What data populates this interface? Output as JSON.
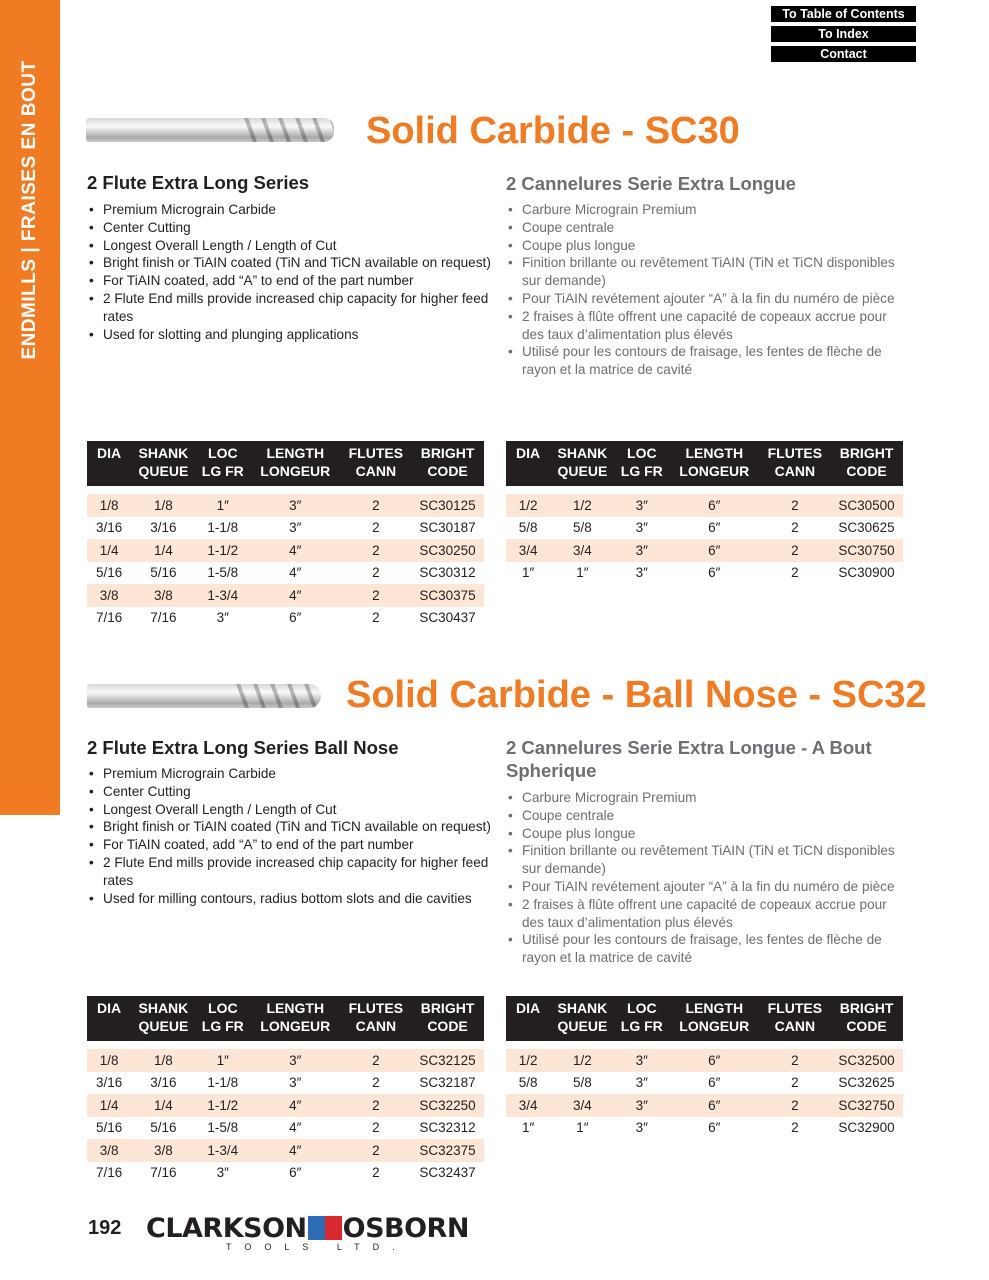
{
  "sidebar": {
    "label": "ENDMILLS | FRAISES EN BOUT",
    "color": "#f07b22"
  },
  "links": [
    "To Table of Contents",
    "To Index",
    "Contact"
  ],
  "sections": [
    {
      "title": "Solid Carbide - SC30",
      "en_heading": "2 Flute Extra Long Series",
      "en_bullets": [
        "Premium Micrograin Carbide",
        "Center Cutting",
        "Longest Overall Length / Length of Cut",
        "Bright finish or TiAIN coated (TiN and TiCN available on request)",
        "For TiAIN coated, add “A” to end of the part number",
        "2 Flute End mills provide increased chip capacity for higher feed rates",
        "Used for slotting and plunging applications"
      ],
      "fr_heading": "2 Cannelures Serie Extra Longue",
      "fr_bullets": [
        "Carbure Micrograin Premium",
        "Coupe centrale",
        "Coupe plus longue",
        "Finition brillante ou revêtement TiAIN (TiN et TiCN disponibles sur demande)",
        "Pour TiAIN revétement ajouter “A” à la fin du numéro de pièce",
        "2 fraises à flûte offrent une capacité de copeaux accrue pour des taux d’alimentation plus élevés",
        "Utilisé pour les contours de fraisage, les fentes de flèche de rayon et la matrice de cavité"
      ],
      "left_rows": [
        [
          "1/8",
          "1/8",
          "1″",
          "3″",
          "2",
          "SC30125"
        ],
        [
          "3/16",
          "3/16",
          "1-1/8",
          "3″",
          "2",
          "SC30187"
        ],
        [
          "1/4",
          "1/4",
          "1-1/2",
          "4″",
          "2",
          "SC30250"
        ],
        [
          "5/16",
          "5/16",
          "1-5/8",
          "4″",
          "2",
          "SC30312"
        ],
        [
          "3/8",
          "3/8",
          "1-3/4",
          "4″",
          "2",
          "SC30375"
        ],
        [
          "7/16",
          "7/16",
          "3″",
          "6″",
          "2",
          "SC30437"
        ]
      ],
      "right_rows": [
        [
          "1/2",
          "1/2",
          "3″",
          "6″",
          "2",
          "SC30500"
        ],
        [
          "5/8",
          "5/8",
          "3″",
          "6″",
          "2",
          "SC30625"
        ],
        [
          "3/4",
          "3/4",
          "3″",
          "6″",
          "2",
          "SC30750"
        ],
        [
          "1″",
          "1″",
          "3″",
          "6″",
          "2",
          "SC30900"
        ]
      ]
    },
    {
      "title": "Solid Carbide - Ball Nose - SC32",
      "en_heading": "2 Flute Extra Long Series Ball Nose",
      "en_bullets": [
        "Premium Micrograin Carbide",
        "Center Cutting",
        "Longest Overall Length / Length of Cut",
        "Bright finish or TiAIN coated (TiN and TiCN available on request)",
        "For TiAIN coated, add “A” to end of the part number",
        "2 Flute End mills provide increased chip capacity for higher feed rates",
        "Used for milling contours, radius bottom slots and die cavities"
      ],
      "fr_heading": "2 Cannelures Serie Extra Longue - A Bout Spherique",
      "fr_bullets": [
        "Carbure Micrograin Premium",
        "Coupe centrale",
        "Coupe plus longue",
        "Finition brillante ou revêtement TiAIN (TiN et TiCN disponibles sur demande)",
        "Pour TiAIN revétement ajouter “A” à la fin du numéro de pièce",
        "2 fraises à flûte offrent une capacité de copeaux accrue pour des taux d’alimentation plus élevés",
        "Utilisé pour les contours de fraisage, les fentes de flèche de rayon et la matrice de cavité"
      ],
      "left_rows": [
        [
          "1/8",
          "1/8",
          "1″",
          "3″",
          "2",
          "SC32125"
        ],
        [
          "3/16",
          "3/16",
          "1-1/8",
          "3″",
          "2",
          "SC32187"
        ],
        [
          "1/4",
          "1/4",
          "1-1/2",
          "4″",
          "2",
          "SC32250"
        ],
        [
          "5/16",
          "5/16",
          "1-5/8",
          "4″",
          "2",
          "SC32312"
        ],
        [
          "3/8",
          "3/8",
          "1-3/4",
          "4″",
          "2",
          "SC32375"
        ],
        [
          "7/16",
          "7/16",
          "3″",
          "6″",
          "2",
          "SC32437"
        ]
      ],
      "right_rows": [
        [
          "1/2",
          "1/2",
          "3″",
          "6″",
          "2",
          "SC32500"
        ],
        [
          "5/8",
          "5/8",
          "3″",
          "6″",
          "2",
          "SC32625"
        ],
        [
          "3/4",
          "3/4",
          "3″",
          "6″",
          "2",
          "SC32750"
        ],
        [
          "1″",
          "1″",
          "3″",
          "6″",
          "2",
          "SC32900"
        ]
      ]
    }
  ],
  "columns": [
    [
      "DIA",
      ""
    ],
    [
      "SHANK",
      "QUEUE"
    ],
    [
      "LOC",
      "LG FR"
    ],
    [
      "LENGTH",
      "LONGEUR"
    ],
    [
      "FLUTES",
      "CANN"
    ],
    [
      "BRIGHT",
      "CODE"
    ]
  ],
  "footer": {
    "page": "192",
    "brand_left": "CLARKSON",
    "brand_right": "OSBORN",
    "tagline": "TOOLS LTD."
  },
  "accent": "#f07b22",
  "stripe": "#fde6d5"
}
